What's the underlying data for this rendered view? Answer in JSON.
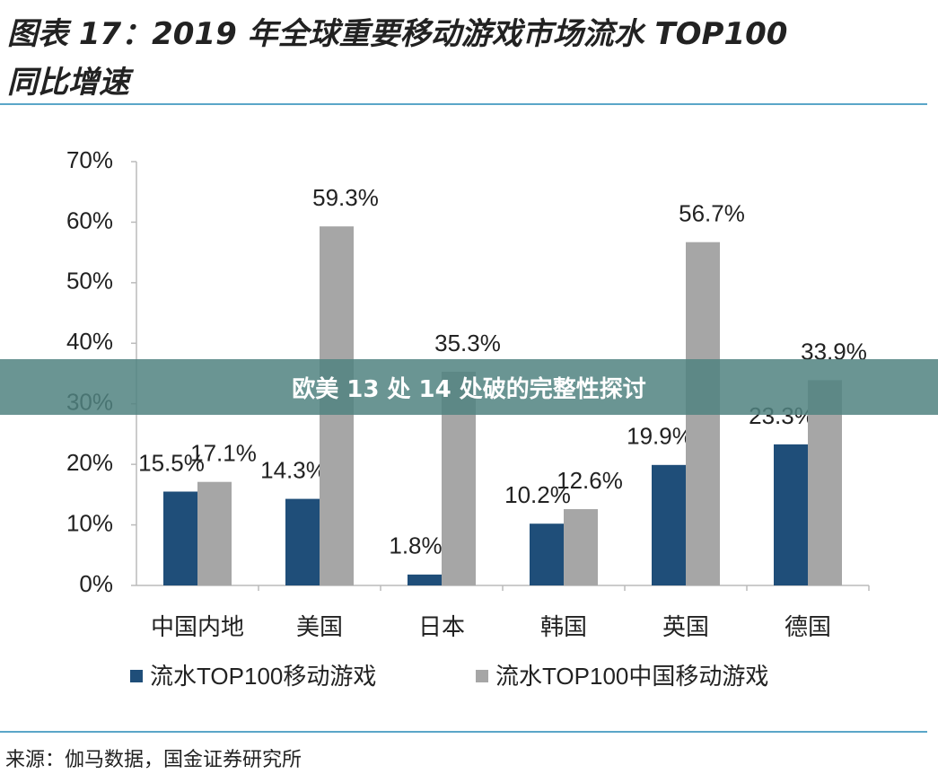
{
  "banner": "欧美 13 处 14 处破的完整性探讨",
  "chart_data": {
    "type": "bar",
    "title": [
      "图表 17：2019 年全球重要移动游戏市场流水 TOP100",
      "同比增速"
    ],
    "source": "来源：伽马数据，国金证券研究所",
    "categories": [
      "中国内地",
      "美国",
      "日本",
      "韩国",
      "英国",
      "德国"
    ],
    "series": [
      {
        "name": "流水TOP100移动游戏",
        "color": "#1f4e79",
        "values": [
          15.5,
          14.3,
          1.8,
          10.2,
          19.9,
          23.3
        ],
        "value_labels": [
          "15.5%",
          "14.3%",
          "1.8%",
          "10.2%",
          "19.9%",
          "23.3%"
        ]
      },
      {
        "name": "流水TOP100中国移动游戏",
        "color": "#a6a6a6",
        "values": [
          17.1,
          59.3,
          35.3,
          12.6,
          56.7,
          33.9
        ],
        "value_labels": [
          "17.1%",
          "59.3%",
          "35.3%",
          "12.6%",
          "56.7%",
          "33.9%"
        ]
      }
    ],
    "ylim": [
      0,
      70
    ],
    "yticks": [
      {
        "value": 0,
        "label": "0%"
      },
      {
        "value": 10,
        "label": "10%"
      },
      {
        "value": 20,
        "label": "20%"
      },
      {
        "value": 30,
        "label": "30%"
      },
      {
        "value": 40,
        "label": "40%"
      },
      {
        "value": 50,
        "label": "50%"
      },
      {
        "value": 60,
        "label": "60%"
      },
      {
        "value": 70,
        "label": "70%"
      }
    ],
    "grid": false,
    "legend": "bottom"
  }
}
